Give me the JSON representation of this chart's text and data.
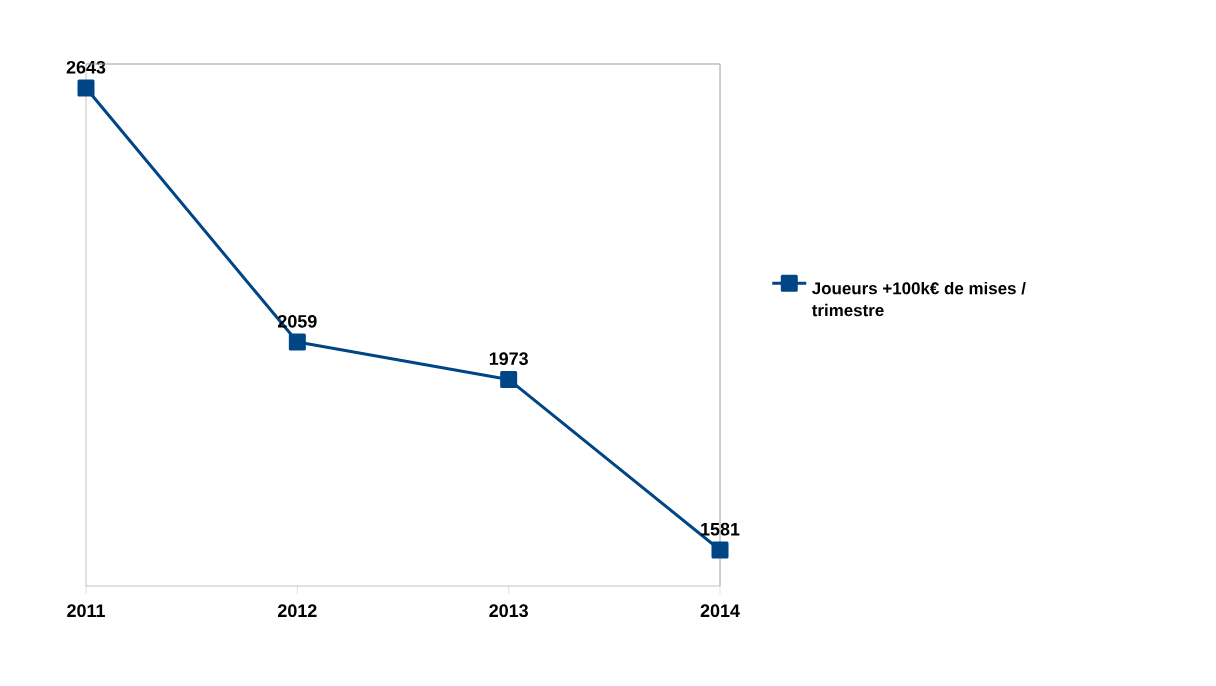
{
  "chart_data": {
    "type": "line",
    "categories": [
      "2011",
      "2012",
      "2013",
      "2014"
    ],
    "series": [
      {
        "name": "Joueurs +100k€ de mises / trimestre",
        "color": "#004586",
        "values": [
          2643,
          2059,
          1973,
          1581
        ]
      }
    ],
    "data_labels": true,
    "marker": "square",
    "legend": "right",
    "grid": false
  }
}
